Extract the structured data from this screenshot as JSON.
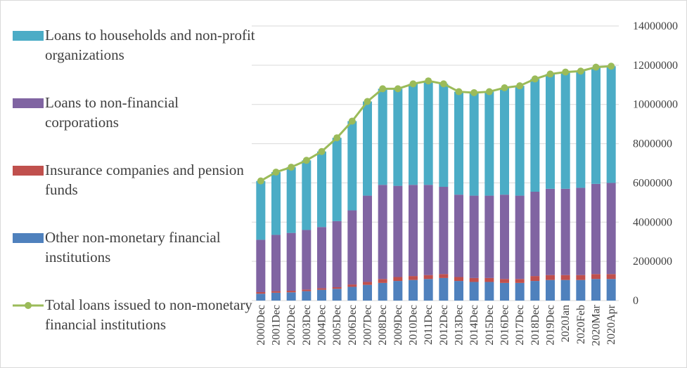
{
  "chart_data": {
    "type": "bar",
    "stacked": true,
    "categories": [
      "2000Dec",
      "2001Dec",
      "2002Dec",
      "2003Dec",
      "2004Dec",
      "2005Dec",
      "2006Dec",
      "2007Dec",
      "2008Dec",
      "2009Dec",
      "2010Dec",
      "2011Dec",
      "2012Dec",
      "2013Dec",
      "2014Dec",
      "2015Dec",
      "2016Dec",
      "2017Dec",
      "2018Dec",
      "2019Dec",
      "2020Jan",
      "2020Feb",
      "2020Mar",
      "2020Apr"
    ],
    "series": [
      {
        "name": "Other non-monetary financial institutions",
        "color": "#4f81bd",
        "values": [
          350000,
          400000,
          420000,
          480000,
          550000,
          600000,
          700000,
          800000,
          900000,
          1000000,
          1050000,
          1100000,
          1150000,
          1000000,
          950000,
          950000,
          900000,
          900000,
          1000000,
          1050000,
          1050000,
          1050000,
          1100000,
          1100000
        ]
      },
      {
        "name": "Insurance companies and pension funds",
        "color": "#c0504d",
        "values": [
          80000,
          80000,
          80000,
          80000,
          80000,
          80000,
          120000,
          150000,
          200000,
          200000,
          200000,
          200000,
          200000,
          200000,
          200000,
          200000,
          200000,
          200000,
          250000,
          250000,
          250000,
          250000,
          250000,
          250000
        ]
      },
      {
        "name": "Loans to non-financial corporations",
        "color": "#8064a2",
        "values": [
          2670000,
          2870000,
          2950000,
          3040000,
          3120000,
          3370000,
          3780000,
          4400000,
          4800000,
          4650000,
          4650000,
          4600000,
          4450000,
          4200000,
          4200000,
          4200000,
          4300000,
          4250000,
          4300000,
          4400000,
          4400000,
          4450000,
          4600000,
          4650000
        ]
      },
      {
        "name": "Loans to households and non-profit organizations",
        "color": "#4bacc6",
        "values": [
          3000000,
          3200000,
          3350000,
          3550000,
          3850000,
          4250000,
          4550000,
          4800000,
          4900000,
          4950000,
          5150000,
          5300000,
          5250000,
          5250000,
          5250000,
          5300000,
          5450000,
          5600000,
          5750000,
          5850000,
          5950000,
          5950000,
          5950000,
          5950000
        ]
      },
      {
        "name": "Total loans issued to non-monetary financial institutions",
        "color": "#9bbb59",
        "type": "line",
        "values": [
          6100000,
          6550000,
          6800000,
          7150000,
          7600000,
          8300000,
          9150000,
          10150000,
          10800000,
          10800000,
          11050000,
          11200000,
          11050000,
          10650000,
          10600000,
          10650000,
          10850000,
          10950000,
          11300000,
          11550000,
          11650000,
          11700000,
          11900000,
          11950000
        ]
      }
    ],
    "ylim": [
      0,
      14000000
    ],
    "yticks": [
      0,
      2000000,
      4000000,
      6000000,
      8000000,
      10000000,
      12000000,
      14000000
    ],
    "grid": true,
    "legend": "left"
  }
}
